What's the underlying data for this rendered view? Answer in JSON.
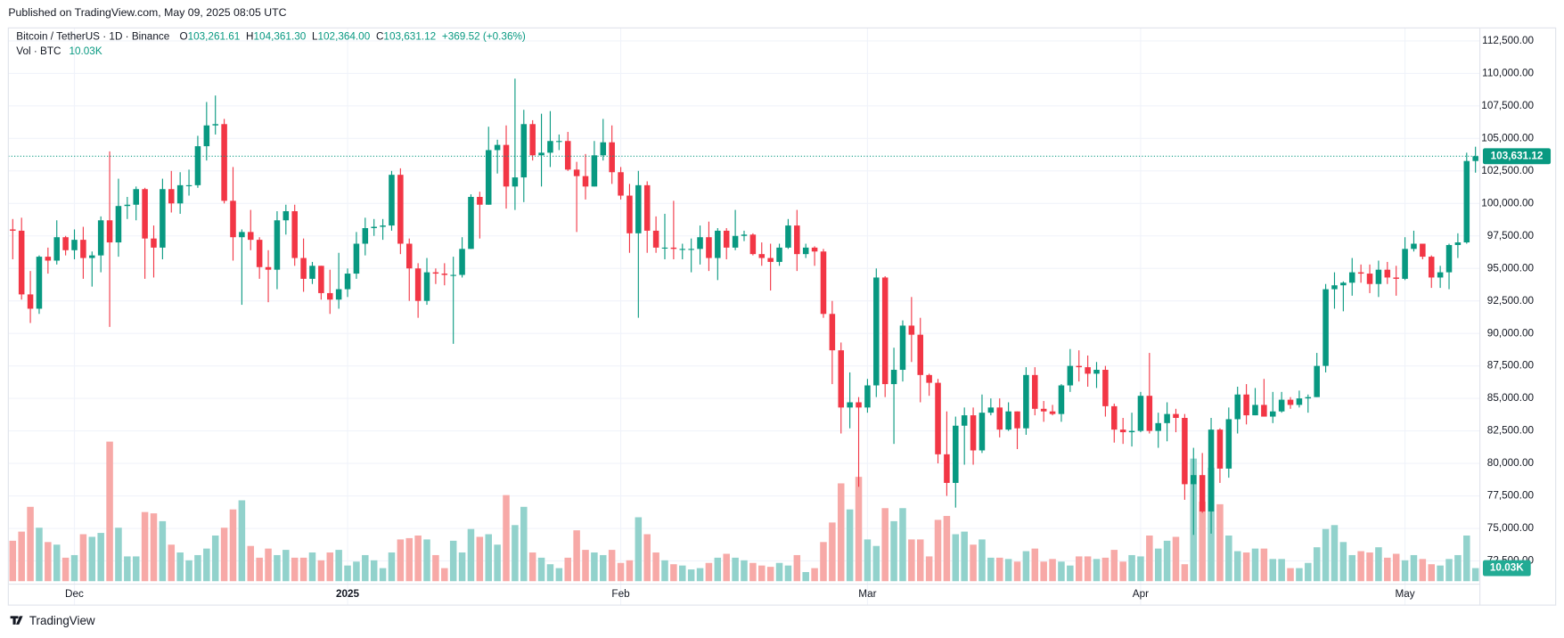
{
  "chart_data": {
    "type": "candlestick",
    "published": "Published on TradingView.com, May 09, 2025 08:05 UTC",
    "symbol": "Bitcoin / TetherUS · 1D · Binance",
    "legend": {
      "open_label": "O",
      "open": "103,261.61",
      "high_label": "H",
      "high": "104,361.30",
      "low_label": "L",
      "low": "102,364.00",
      "close_label": "C",
      "close": "103,631.12",
      "change": "+369.52 (+0.36%)"
    },
    "volume_title": "Vol · BTC",
    "volume_last_label": "10.03K",
    "brand": "TradingView",
    "categories": [
      null,
      null,
      null,
      null,
      null,
      null,
      null,
      "Dec",
      null,
      null,
      null,
      null,
      null,
      null,
      null,
      null,
      null,
      null,
      null,
      null,
      null,
      null,
      null,
      null,
      null,
      null,
      null,
      null,
      null,
      null,
      null,
      null,
      null,
      null,
      null,
      null,
      null,
      null,
      "2025",
      null,
      null,
      null,
      null,
      null,
      null,
      null,
      null,
      null,
      null,
      null,
      null,
      null,
      null,
      null,
      null,
      null,
      null,
      null,
      null,
      null,
      null,
      null,
      null,
      null,
      null,
      null,
      null,
      null,
      null,
      "Feb",
      null,
      null,
      null,
      null,
      null,
      null,
      null,
      null,
      null,
      null,
      null,
      null,
      null,
      null,
      null,
      null,
      null,
      null,
      null,
      null,
      null,
      null,
      null,
      null,
      null,
      null,
      null,
      "Mar",
      null,
      null,
      null,
      null,
      null,
      null,
      null,
      null,
      null,
      null,
      null,
      null,
      null,
      null,
      null,
      null,
      null,
      null,
      null,
      null,
      null,
      null,
      null,
      null,
      null,
      null,
      null,
      null,
      null,
      null,
      "Apr",
      null,
      null,
      null,
      null,
      null,
      null,
      null,
      null,
      null,
      null,
      null,
      null,
      null,
      null,
      null,
      null,
      null,
      null,
      null,
      null,
      null,
      null,
      null,
      null,
      null,
      null,
      null,
      null,
      null,
      "May",
      null,
      null,
      null,
      null,
      null,
      null,
      null,
      null
    ],
    "open": [
      98000,
      97900,
      93000,
      91900,
      95900,
      95600,
      97400,
      96400,
      97200,
      95800,
      96000,
      98700,
      97000,
      99800,
      99900,
      101100,
      97300,
      96600,
      101100,
      100000,
      101400,
      101400,
      104400,
      106000,
      106100,
      100200,
      97400,
      97800,
      97200,
      95100,
      94900,
      98700,
      99400,
      95800,
      94200,
      95200,
      93100,
      92600,
      93400,
      94600,
      96900,
      98100,
      98200,
      98300,
      102200,
      96900,
      95000,
      92500,
      94700,
      94600,
      94500,
      94500,
      96500,
      100500,
      99900,
      104100,
      104500,
      101300,
      102000,
      106100,
      103700,
      103900,
      104800,
      104800,
      102600,
      102100,
      101300,
      103700,
      104700,
      102400,
      100600,
      97700,
      101400,
      97900,
      96600,
      96600,
      96500,
      96500,
      96500,
      97400,
      95800,
      97900,
      96600,
      97500,
      97600,
      96100,
      95800,
      95500,
      96600,
      98300,
      96100,
      96600,
      96300,
      91500,
      88700,
      84300,
      84700,
      84300,
      86000,
      94300,
      86100,
      87200,
      90600,
      89900,
      86800,
      86200,
      80700,
      78500,
      82900,
      83700,
      81000,
      83900,
      84300,
      82600,
      84000,
      82700,
      86800,
      84200,
      84000,
      83800,
      86000,
      87500,
      87400,
      86900,
      87200,
      84400,
      82600,
      82400,
      82500,
      85200,
      82500,
      83100,
      83800,
      83500,
      78400,
      79100,
      76300,
      82600,
      79600,
      83400,
      85300,
      83700,
      84500,
      83600,
      84000,
      84900,
      84500,
      85000,
      85100,
      87500,
      93400,
      93700,
      93900,
      94700,
      94600,
      93800,
      94900,
      94300,
      94200,
      96500,
      96900,
      95900,
      94300,
      94700,
      96800,
      97000,
      103261.61
    ],
    "high": [
      98800,
      98900,
      94800,
      96000,
      96600,
      98700,
      97500,
      98000,
      98200,
      96300,
      99000,
      104000,
      101900,
      100500,
      101300,
      101200,
      98300,
      101900,
      102500,
      102400,
      102600,
      105200,
      107800,
      108300,
      106500,
      102800,
      98000,
      99500,
      97400,
      96400,
      99400,
      99900,
      99900,
      97300,
      95500,
      95200,
      94900,
      96200,
      95000,
      97800,
      98900,
      98800,
      98800,
      102500,
      102700,
      97300,
      95400,
      95800,
      95000,
      95400,
      95900,
      97400,
      100700,
      100900,
      105900,
      104900,
      106000,
      109600,
      107200,
      106400,
      106900,
      107100,
      105300,
      105500,
      103200,
      103800,
      104800,
      106500,
      106000,
      102800,
      101500,
      102500,
      101700,
      99000,
      99200,
      100200,
      96900,
      97300,
      98300,
      98600,
      98100,
      98100,
      99500,
      97900,
      97700,
      97000,
      96900,
      96900,
      98800,
      99500,
      96900,
      96700,
      96500,
      92500,
      89300,
      87000,
      85100,
      86500,
      95000,
      94400,
      88900,
      91000,
      92800,
      91200,
      86900,
      86500,
      84000,
      83600,
      84300,
      84300,
      85300,
      85000,
      85000,
      84700,
      84000,
      87400,
      87400,
      84800,
      84500,
      86100,
      88800,
      88700,
      88300,
      87800,
      87500,
      84600,
      83500,
      83900,
      85500,
      88500,
      83900,
      84700,
      84200,
      83800,
      81200,
      80800,
      83500,
      82700,
      84300,
      85900,
      86100,
      85800,
      86500,
      85500,
      85500,
      85100,
      85600,
      85300,
      88500,
      93800,
      94700,
      94000,
      95800,
      95300,
      95300,
      95600,
      95500,
      95200,
      97400,
      97900,
      96900,
      96000,
      95200,
      96900,
      97700,
      103900,
      104361.3
    ],
    "low": [
      95700,
      92600,
      90800,
      91500,
      94600,
      95300,
      96000,
      95700,
      94200,
      93600,
      94700,
      90500,
      95900,
      98800,
      98700,
      94200,
      94300,
      95700,
      99300,
      99200,
      100600,
      101200,
      103300,
      105300,
      100000,
      95600,
      92200,
      96400,
      94200,
      92400,
      93400,
      97600,
      95200,
      93200,
      93800,
      92600,
      91500,
      91900,
      92800,
      94200,
      96000,
      97500,
      97200,
      97900,
      96100,
      92500,
      91200,
      92200,
      93800,
      93700,
      89200,
      94300,
      96500,
      97300,
      99900,
      102300,
      99600,
      99500,
      100100,
      103300,
      101300,
      102800,
      104100,
      102500,
      97800,
      100300,
      101300,
      103300,
      101500,
      100300,
      96200,
      91200,
      96200,
      96200,
      95700,
      95700,
      95700,
      94700,
      95300,
      94800,
      94100,
      95700,
      96400,
      97100,
      96000,
      95200,
      93300,
      95200,
      96500,
      94800,
      95800,
      95200,
      91200,
      86100,
      82300,
      82700,
      78200,
      83900,
      85100,
      85100,
      81500,
      86300,
      87800,
      84700,
      85200,
      80000,
      77500,
      76600,
      79900,
      79900,
      80800,
      83700,
      82000,
      82500,
      81100,
      82200,
      83700,
      83200,
      83700,
      83200,
      85500,
      86300,
      85900,
      85800,
      83600,
      81600,
      81500,
      81300,
      82400,
      82300,
      81200,
      81700,
      82400,
      77200,
      74500,
      76200,
      74600,
      78500,
      78900,
      82300,
      83000,
      83700,
      83600,
      83100,
      83900,
      84200,
      84300,
      83900,
      85100,
      87000,
      91900,
      91700,
      92900,
      93900,
      93100,
      92800,
      93800,
      92900,
      94100,
      96300,
      95700,
      93500,
      93500,
      93400,
      95800,
      96900,
      102364
    ],
    "close": [
      97900,
      93000,
      91900,
      95900,
      95600,
      97400,
      96400,
      97200,
      95800,
      96000,
      98700,
      97000,
      99800,
      99900,
      101100,
      97300,
      96600,
      101100,
      100000,
      101400,
      101400,
      104400,
      106000,
      106100,
      100200,
      97400,
      97800,
      97200,
      95100,
      94900,
      98700,
      99400,
      95800,
      94200,
      95200,
      93100,
      92600,
      93400,
      94600,
      96900,
      98100,
      98200,
      98300,
      102200,
      96900,
      95000,
      92500,
      94700,
      94600,
      94500,
      94500,
      96500,
      100500,
      99900,
      104100,
      104500,
      101300,
      102000,
      106100,
      103700,
      103900,
      104800,
      104800,
      102600,
      102100,
      101300,
      103700,
      104700,
      102400,
      100600,
      97700,
      101400,
      97900,
      96600,
      96600,
      96500,
      96500,
      96500,
      97400,
      95800,
      97900,
      96600,
      97500,
      97600,
      96100,
      95800,
      95500,
      96600,
      98300,
      96100,
      96600,
      96300,
      91500,
      88700,
      84300,
      84700,
      84300,
      86000,
      94300,
      86100,
      87200,
      90600,
      89900,
      86800,
      86200,
      80700,
      78500,
      82900,
      83700,
      81000,
      83900,
      84300,
      82600,
      84000,
      82700,
      86800,
      84200,
      84000,
      83800,
      86000,
      87500,
      87400,
      86900,
      87200,
      84400,
      82600,
      82400,
      82500,
      85200,
      82500,
      83100,
      83800,
      83500,
      78400,
      79100,
      76300,
      82600,
      79600,
      83400,
      85300,
      83700,
      84500,
      83600,
      84000,
      84900,
      84500,
      85000,
      85100,
      87500,
      93400,
      93700,
      93900,
      94700,
      94600,
      93800,
      94900,
      94300,
      94200,
      96500,
      96900,
      95900,
      94300,
      94700,
      96800,
      97000,
      103261.61,
      103631.12
    ],
    "volume": [
      31000,
      38000,
      57000,
      41000,
      30000,
      28000,
      18000,
      20000,
      36000,
      34000,
      37000,
      107000,
      41000,
      19000,
      19000,
      53000,
      52000,
      46000,
      28000,
      22000,
      16000,
      20000,
      25000,
      35000,
      41000,
      55000,
      62000,
      27000,
      18000,
      25000,
      20000,
      24000,
      18000,
      18000,
      22000,
      16000,
      22000,
      24000,
      12000,
      15000,
      20000,
      16000,
      10000,
      22000,
      32000,
      33000,
      35000,
      32000,
      20000,
      10000,
      31000,
      22000,
      40000,
      34000,
      36000,
      28000,
      66000,
      43000,
      57000,
      22000,
      18000,
      13000,
      10000,
      18000,
      39000,
      24000,
      22000,
      20000,
      24000,
      14000,
      16000,
      49000,
      36000,
      22000,
      16000,
      13000,
      12000,
      9000,
      10000,
      14000,
      18000,
      21000,
      18000,
      16000,
      14000,
      12000,
      11000,
      14000,
      12000,
      20000,
      7000,
      10000,
      30000,
      45000,
      75000,
      55000,
      80000,
      32000,
      27000,
      56000,
      46000,
      56000,
      32000,
      32000,
      19000,
      47000,
      50000,
      36000,
      38000,
      28000,
      32000,
      18000,
      18000,
      17000,
      15000,
      23000,
      25000,
      15000,
      17000,
      15000,
      12000,
      19000,
      19000,
      17000,
      18000,
      24000,
      15000,
      20000,
      19000,
      35000,
      25000,
      31000,
      34000,
      13000,
      94000,
      61000,
      87000,
      59000,
      35000,
      23000,
      22000,
      25000,
      25000,
      17000,
      17000,
      10000,
      10000,
      14000,
      26000,
      40000,
      43000,
      30000,
      20000,
      23000,
      22000,
      26000,
      18000,
      21000,
      16000,
      20000,
      17000,
      13000,
      12000,
      17000,
      20000,
      35000,
      10030
    ],
    "up_color": "#089981",
    "down_color": "#f23645",
    "volume_up_color": "#92d2cc",
    "volume_down_color": "#f7a9a7",
    "ylim": [
      69100,
      113500
    ],
    "yticks": [
      {
        "value": 72500,
        "label": "72,500.00"
      },
      {
        "value": 75000,
        "label": "75,000.00"
      },
      {
        "value": 77500,
        "label": "77,500.00"
      },
      {
        "value": 80000,
        "label": "80,000.00"
      },
      {
        "value": 82500,
        "label": "82,500.00"
      },
      {
        "value": 85000,
        "label": "85,000.00"
      },
      {
        "value": 87500,
        "label": "87,500.00"
      },
      {
        "value": 90000,
        "label": "90,000.00"
      },
      {
        "value": 92500,
        "label": "92,500.00"
      },
      {
        "value": 95000,
        "label": "95,000.00"
      },
      {
        "value": 97500,
        "label": "97,500.00"
      },
      {
        "value": 100000,
        "label": "100,000.00"
      },
      {
        "value": 102500,
        "label": "102,500.00"
      },
      {
        "value": 105000,
        "label": "105,000.00"
      },
      {
        "value": 107500,
        "label": "107,500.00"
      },
      {
        "value": 110000,
        "label": "110,000.00"
      },
      {
        "value": 112500,
        "label": "112,500.00"
      }
    ],
    "grid": true,
    "last_price_line": true
  }
}
